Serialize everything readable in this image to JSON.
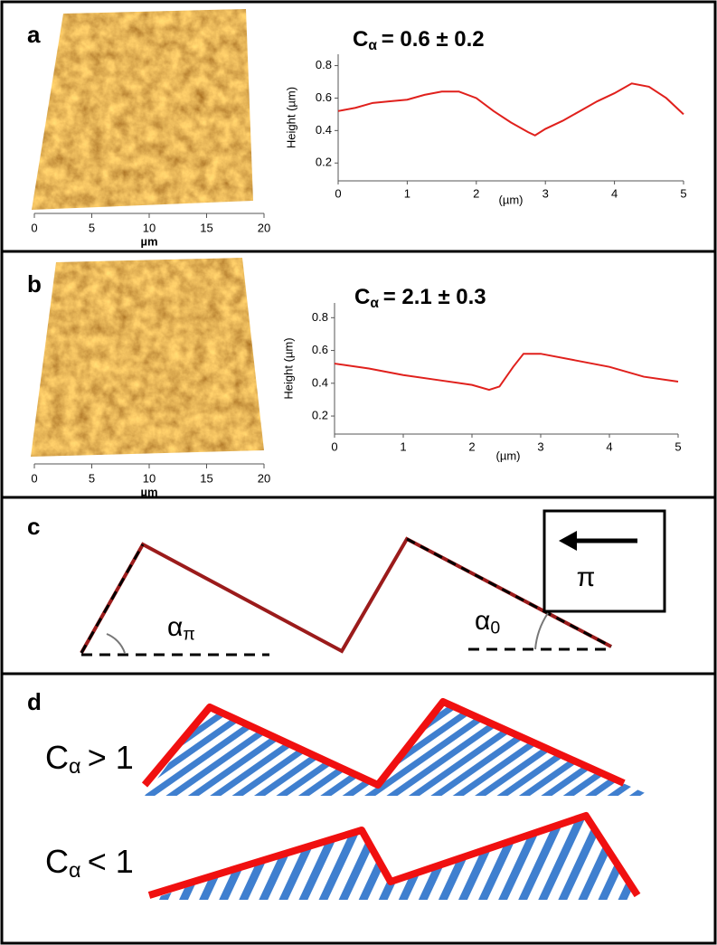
{
  "panels": [
    {
      "label": "a",
      "image_axis": {
        "ticks": [
          0,
          5,
          10,
          15,
          20
        ],
        "unit": "µm"
      }
    },
    {
      "label": "b",
      "image_axis": {
        "ticks": [
          0,
          5,
          10,
          15,
          20
        ],
        "unit": "µm"
      }
    },
    {
      "label": "c",
      "angle_left": {
        "symbol": "α",
        "subscript": "π"
      },
      "angle_right": {
        "symbol": "α",
        "subscript": "0"
      },
      "direction": "π"
    },
    {
      "label": "d",
      "cases": [
        {
          "symbol": "C",
          "subscript": "α",
          "relation": "> 1"
        },
        {
          "symbol": "C",
          "subscript": "α",
          "relation": "< 1"
        }
      ]
    }
  ],
  "chart_data": [
    {
      "type": "line",
      "annotation": {
        "symbol": "C",
        "subscript": "α",
        "text": "= 0.6 ± 0.2"
      },
      "y_label": "Height (µm)",
      "x_label": "(µm)",
      "x": [
        0,
        0.25,
        0.5,
        0.75,
        1,
        1.25,
        1.5,
        1.75,
        2,
        2.25,
        2.5,
        2.75,
        2.85,
        3,
        3.25,
        3.5,
        3.75,
        4,
        4.25,
        4.5,
        4.75,
        5
      ],
      "series": [
        {
          "color": "#e0201c",
          "values": [
            0.52,
            0.54,
            0.57,
            0.58,
            0.59,
            0.62,
            0.64,
            0.64,
            0.6,
            0.52,
            0.45,
            0.39,
            0.37,
            0.41,
            0.46,
            0.52,
            0.58,
            0.63,
            0.69,
            0.67,
            0.6,
            0.5
          ]
        }
      ],
      "xlim": [
        0,
        5
      ],
      "ylim": [
        0.09,
        0.87
      ],
      "xticks": [
        0,
        1,
        2,
        3,
        4,
        5
      ],
      "yticks": [
        0.2,
        0.4,
        0.6,
        0.8
      ]
    },
    {
      "type": "line",
      "annotation": {
        "symbol": "C",
        "subscript": "α",
        "text": "= 2.1 ± 0.3"
      },
      "y_label": "Height (µm)",
      "x_label": "(µm)",
      "x": [
        0,
        0.5,
        1,
        1.5,
        2,
        2.25,
        2.4,
        2.6,
        2.75,
        3,
        3.5,
        4,
        4.5,
        5
      ],
      "series": [
        {
          "color": "#e0201c",
          "values": [
            0.52,
            0.49,
            0.45,
            0.42,
            0.39,
            0.36,
            0.38,
            0.5,
            0.58,
            0.58,
            0.54,
            0.5,
            0.44,
            0.41
          ]
        }
      ],
      "xlim": [
        0,
        5
      ],
      "ylim": [
        0.09,
        0.89
      ],
      "xticks": [
        0,
        1,
        2,
        3,
        4,
        5
      ],
      "yticks": [
        0.2,
        0.4,
        0.6,
        0.8
      ]
    }
  ]
}
